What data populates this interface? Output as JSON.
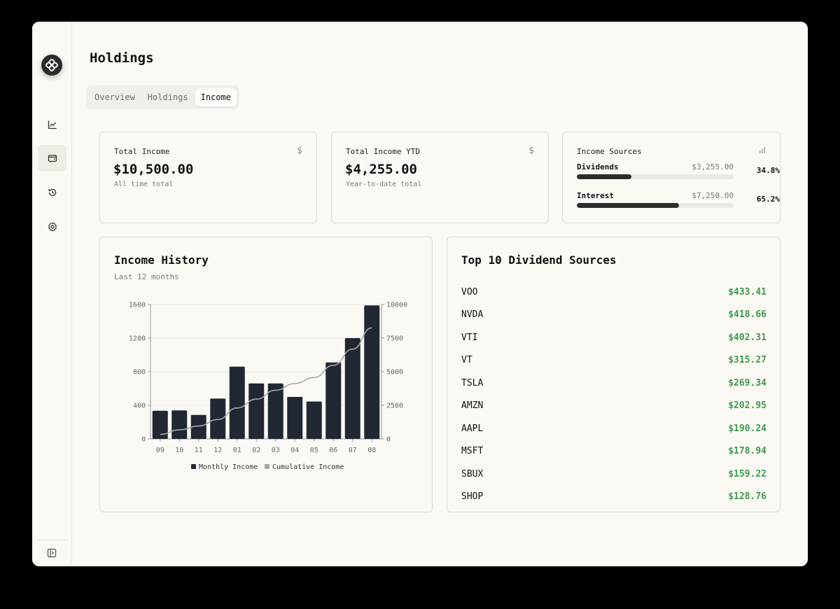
{
  "page": {
    "title": "Holdings"
  },
  "tabs": [
    {
      "label": "Overview"
    },
    {
      "label": "Holdings"
    },
    {
      "label": "Income"
    }
  ],
  "summary": {
    "total_income": {
      "label": "Total Income",
      "value": "$10,500.00",
      "sub": "All time total",
      "icon": "dollar-icon"
    },
    "total_income_ytd": {
      "label": "Total Income YTD",
      "value": "$4,255.00",
      "sub": "Year-to-date total",
      "icon": "dollar-icon"
    }
  },
  "income_sources": {
    "label": "Income Sources",
    "icon": "bar-chart-icon",
    "items": [
      {
        "name": "Dividends",
        "amount": "$3,255.00",
        "percent": "34.8%",
        "fraction": 0.348
      },
      {
        "name": "Interest",
        "amount": "$7,250.00",
        "percent": "65.2%",
        "fraction": 0.652
      }
    ]
  },
  "income_history": {
    "title": "Income History",
    "subtitle": "Last 12 months"
  },
  "chart_data": {
    "type": "bar",
    "categories": [
      "09",
      "10",
      "11",
      "12",
      "01",
      "02",
      "03",
      "04",
      "05",
      "06",
      "07",
      "08"
    ],
    "series": [
      {
        "name": "Monthly Income",
        "type": "bar",
        "axis": "left",
        "color": "#212733",
        "values": [
          335,
          340,
          285,
          480,
          860,
          660,
          660,
          500,
          445,
          910,
          1200,
          1590
        ]
      },
      {
        "name": "Cumulative Income",
        "type": "line",
        "axis": "right",
        "color": "#a8a8a8",
        "values": [
          335,
          675,
          960,
          1440,
          2300,
          2960,
          3620,
          4120,
          4565,
          5475,
          6675,
          8265
        ]
      }
    ],
    "y_left": {
      "range": [
        0,
        1600
      ],
      "ticks": [
        "0",
        "400",
        "800",
        "1200",
        "1600"
      ]
    },
    "y_right": {
      "range": [
        0,
        10000
      ],
      "ticks": [
        "0",
        "2500",
        "5000",
        "7500",
        "10000"
      ]
    },
    "grid": true,
    "legend": "bottom"
  },
  "top_dividends": {
    "title": "Top 10 Dividend Sources",
    "items": [
      {
        "symbol": "VOO",
        "amount": "$433.41"
      },
      {
        "symbol": "NVDA",
        "amount": "$418.66"
      },
      {
        "symbol": "VTI",
        "amount": "$402.31"
      },
      {
        "symbol": "VT",
        "amount": "$315.27"
      },
      {
        "symbol": "TSLA",
        "amount": "$269.34"
      },
      {
        "symbol": "AMZN",
        "amount": "$202.95"
      },
      {
        "symbol": "AAPL",
        "amount": "$190.24"
      },
      {
        "symbol": "MSFT",
        "amount": "$178.94"
      },
      {
        "symbol": "SBUX",
        "amount": "$159.22"
      },
      {
        "symbol": "SHOP",
        "amount": "$128.76"
      }
    ]
  },
  "sidebar": {
    "items": [
      {
        "icon": "line-chart-icon"
      },
      {
        "icon": "wallet-icon",
        "active": true
      },
      {
        "icon": "history-icon"
      },
      {
        "icon": "gear-icon"
      }
    ],
    "footer_icon": "sidebar-toggle-icon"
  },
  "colors": {
    "accent_green": "#3e9a4e",
    "bar": "#212733",
    "background": "#fbf9f4"
  }
}
